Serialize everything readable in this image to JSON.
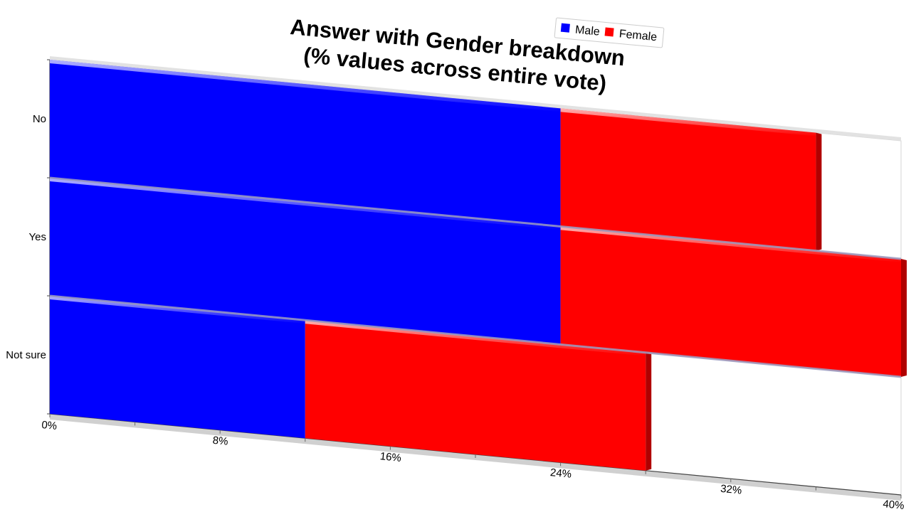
{
  "chart_data": {
    "type": "bar",
    "orientation": "horizontal",
    "stacked": true,
    "title": "Answer with Gender breakdown",
    "subtitle": "(% values across entire vote)",
    "categories": [
      "No",
      "Yes",
      "Not sure"
    ],
    "series": [
      {
        "name": "Male",
        "color": "#0000ff",
        "values": [
          24,
          24,
          12
        ]
      },
      {
        "name": "Female",
        "color": "#ff0000",
        "values": [
          12,
          16,
          16
        ]
      }
    ],
    "xlim": [
      0,
      40
    ],
    "x_ticks": [
      "0%",
      "8%",
      "16%",
      "24%",
      "32%",
      "40%"
    ],
    "legend_position": "top-right",
    "grid": false
  }
}
